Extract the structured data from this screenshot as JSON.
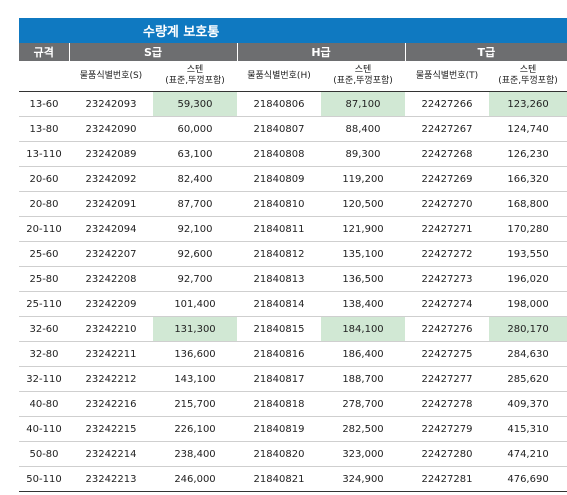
{
  "title": "수량계 보호통",
  "grades": {
    "spec_label": "규격",
    "s": "S급",
    "h": "H급",
    "t": "T급"
  },
  "columns": {
    "item_s": "물품식별번호(S)",
    "item_h": "물품식별번호(H)",
    "item_t": "물품식별번호(T)",
    "steel_line1": "스텐",
    "steel_line2": "(표준,뚜껑포함)"
  },
  "rows": [
    {
      "spec": "13-60",
      "s_id": "23242093",
      "s_price": "59,300",
      "h_id": "21840806",
      "h_price": "87,100",
      "t_id": "22427266",
      "t_price": "123,260"
    },
    {
      "spec": "13-80",
      "s_id": "23242090",
      "s_price": "60,000",
      "h_id": "21840807",
      "h_price": "88,400",
      "t_id": "22427267",
      "t_price": "124,740"
    },
    {
      "spec": "13-110",
      "s_id": "23242089",
      "s_price": "63,100",
      "h_id": "21840808",
      "h_price": "89,300",
      "t_id": "22427268",
      "t_price": "126,230"
    },
    {
      "spec": "20-60",
      "s_id": "23242092",
      "s_price": "82,400",
      "h_id": "21840809",
      "h_price": "119,200",
      "t_id": "22427269",
      "t_price": "166,320"
    },
    {
      "spec": "20-80",
      "s_id": "23242091",
      "s_price": "87,700",
      "h_id": "21840810",
      "h_price": "120,500",
      "t_id": "22427270",
      "t_price": "168,800"
    },
    {
      "spec": "20-110",
      "s_id": "23242094",
      "s_price": "92,100",
      "h_id": "21840811",
      "h_price": "121,900",
      "t_id": "22427271",
      "t_price": "170,280"
    },
    {
      "spec": "25-60",
      "s_id": "23242207",
      "s_price": "92,600",
      "h_id": "21840812",
      "h_price": "135,100",
      "t_id": "22427272",
      "t_price": "193,550"
    },
    {
      "spec": "25-80",
      "s_id": "23242208",
      "s_price": "92,700",
      "h_id": "21840813",
      "h_price": "136,500",
      "t_id": "22427273",
      "t_price": "196,020"
    },
    {
      "spec": "25-110",
      "s_id": "23242209",
      "s_price": "101,400",
      "h_id": "21840814",
      "h_price": "138,400",
      "t_id": "22427274",
      "t_price": "198,000"
    },
    {
      "spec": "32-60",
      "s_id": "23242210",
      "s_price": "131,300",
      "h_id": "21840815",
      "h_price": "184,100",
      "t_id": "22427276",
      "t_price": "280,170"
    },
    {
      "spec": "32-80",
      "s_id": "23242211",
      "s_price": "136,600",
      "h_id": "21840816",
      "h_price": "186,400",
      "t_id": "22427275",
      "t_price": "284,630"
    },
    {
      "spec": "32-110",
      "s_id": "23242212",
      "s_price": "143,100",
      "h_id": "21840817",
      "h_price": "188,700",
      "t_id": "22427277",
      "t_price": "285,620"
    },
    {
      "spec": "40-80",
      "s_id": "23242216",
      "s_price": "215,700",
      "h_id": "21840818",
      "h_price": "278,700",
      "t_id": "22427278",
      "t_price": "409,370"
    },
    {
      "spec": "40-110",
      "s_id": "23242215",
      "s_price": "226,100",
      "h_id": "21840819",
      "h_price": "282,500",
      "t_id": "22427279",
      "t_price": "415,310"
    },
    {
      "spec": "50-80",
      "s_id": "23242214",
      "s_price": "238,400",
      "h_id": "21840820",
      "h_price": "323,000",
      "t_id": "22427280",
      "t_price": "474,210"
    },
    {
      "spec": "50-110",
      "s_id": "23242213",
      "s_price": "246,000",
      "h_id": "21840821",
      "h_price": "324,900",
      "t_id": "22427281",
      "t_price": "476,690"
    }
  ],
  "highlight_color": "#d1e8d4",
  "header_blue": "#0f79c1",
  "header_gray": "#6d6e70"
}
